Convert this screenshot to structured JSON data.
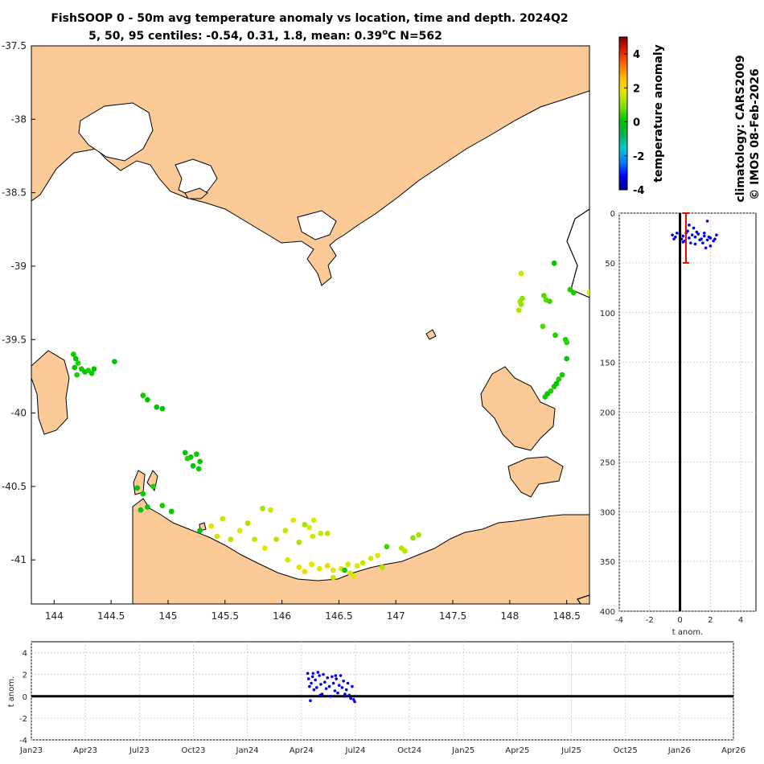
{
  "title": {
    "line1": "FishSOOP 0 - 50m avg temperature anomaly vs location, time and depth. 2024Q2",
    "line2_prefix": "5, 50, 95 centiles: -0.54, 0.31, 1.8, mean: 0.39",
    "line2_unit_deg": "o",
    "line2_suffix": "C N=562"
  },
  "side_text": {
    "climatology": "climatology: CARS2009",
    "credit": "© IMOS 08-Feb-2026"
  },
  "colors": {
    "land": "#fcca96",
    "coast": "#000000",
    "dots_depth": "#0000e6",
    "errorbar": "#e60000",
    "grid": "#c8c8c8"
  },
  "chart_data": [
    {
      "type": "scatter",
      "name": "map",
      "xlabel": "",
      "ylabel": "",
      "xlim": [
        143.8,
        148.7
      ],
      "ylim": [
        -41.3,
        -37.5
      ],
      "x_ticks": [
        "144",
        "144.5",
        "145",
        "145.5",
        "146",
        "146.5",
        "147",
        "147.5",
        "148",
        "148.5"
      ],
      "x_tick_values": [
        144,
        144.5,
        145,
        145.5,
        146,
        146.5,
        147,
        147.5,
        148,
        148.5
      ],
      "y_ticks": [
        "-37.5",
        "-38",
        "-38.5",
        "-39",
        "-39.5",
        "-40",
        "-40.5",
        "-41"
      ],
      "y_tick_values": [
        -37.5,
        -38,
        -38.5,
        -39,
        -39.5,
        -40,
        -40.5,
        -41
      ],
      "points": [
        [
          144.17,
          -39.6,
          0.2
        ],
        [
          144.19,
          -39.63,
          0.1
        ],
        [
          144.21,
          -39.66,
          0.3
        ],
        [
          144.18,
          -39.69,
          0.0
        ],
        [
          144.24,
          -39.7,
          0.2
        ],
        [
          144.27,
          -39.72,
          0.1
        ],
        [
          144.3,
          -39.71,
          0.3
        ],
        [
          144.33,
          -39.73,
          0.2
        ],
        [
          144.35,
          -39.7,
          0.1
        ],
        [
          144.2,
          -39.74,
          0.3
        ],
        [
          144.53,
          -39.65,
          0.1
        ],
        [
          144.78,
          -39.88,
          0.2
        ],
        [
          144.82,
          -39.91,
          0.1
        ],
        [
          144.9,
          -39.96,
          0.0
        ],
        [
          144.95,
          -39.97,
          0.1
        ],
        [
          145.15,
          -40.27,
          0.0
        ],
        [
          145.2,
          -40.3,
          0.1
        ],
        [
          145.25,
          -40.28,
          0.2
        ],
        [
          145.28,
          -40.33,
          0.1
        ],
        [
          145.22,
          -40.36,
          0.0
        ],
        [
          145.27,
          -40.38,
          0.2
        ],
        [
          145.17,
          -40.31,
          0.3
        ],
        [
          144.73,
          -40.51,
          0.0
        ],
        [
          144.78,
          -40.55,
          0.1
        ],
        [
          144.87,
          -40.5,
          0.3
        ],
        [
          144.82,
          -40.64,
          0.1
        ],
        [
          144.76,
          -40.66,
          0.0
        ],
        [
          144.95,
          -40.63,
          0.2
        ],
        [
          145.03,
          -40.67,
          0.1
        ],
        [
          145.28,
          -40.8,
          0.0
        ],
        [
          145.38,
          -40.77,
          1.8
        ],
        [
          145.43,
          -40.84,
          1.6
        ],
        [
          145.48,
          -40.72,
          1.5
        ],
        [
          145.55,
          -40.86,
          1.4
        ],
        [
          145.63,
          -40.8,
          1.7
        ],
        [
          145.7,
          -40.75,
          1.3
        ],
        [
          145.76,
          -40.86,
          1.5
        ],
        [
          145.83,
          -40.65,
          1.2
        ],
        [
          145.9,
          -40.66,
          1.6
        ],
        [
          145.85,
          -40.92,
          1.8
        ],
        [
          145.95,
          -40.86,
          1.4
        ],
        [
          146.03,
          -40.8,
          1.5
        ],
        [
          146.1,
          -40.73,
          1.7
        ],
        [
          146.15,
          -40.88,
          1.3
        ],
        [
          146.2,
          -40.76,
          1.2
        ],
        [
          146.24,
          -40.78,
          1.8
        ],
        [
          146.27,
          -40.84,
          1.6
        ],
        [
          146.34,
          -40.82,
          1.5
        ],
        [
          146.4,
          -40.82,
          1.4
        ],
        [
          146.28,
          -40.73,
          1.7
        ],
        [
          146.15,
          -41.05,
          1.9
        ],
        [
          146.2,
          -41.08,
          2.0
        ],
        [
          146.26,
          -41.03,
          1.8
        ],
        [
          146.33,
          -41.06,
          1.7
        ],
        [
          146.4,
          -41.04,
          2.0
        ],
        [
          146.45,
          -41.07,
          1.9
        ],
        [
          146.52,
          -41.06,
          1.8
        ],
        [
          146.58,
          -41.03,
          1.7
        ],
        [
          146.6,
          -41.09,
          1.6
        ],
        [
          146.66,
          -41.04,
          1.9
        ],
        [
          146.71,
          -41.02,
          1.5
        ],
        [
          146.78,
          -40.99,
          1.6
        ],
        [
          146.84,
          -40.97,
          1.8
        ],
        [
          146.88,
          -41.05,
          1.3
        ],
        [
          146.05,
          -41.0,
          1.6
        ],
        [
          146.55,
          -41.07,
          0.2
        ],
        [
          147.05,
          -40.92,
          1.3
        ],
        [
          147.08,
          -40.94,
          1.4
        ],
        [
          147.15,
          -40.85,
          1.0
        ],
        [
          147.2,
          -40.83,
          1.2
        ],
        [
          146.92,
          -40.91,
          0.5
        ],
        [
          146.45,
          -41.12,
          1.5
        ],
        [
          146.63,
          -41.11,
          1.8
        ],
        [
          148.1,
          -39.05,
          1.6
        ],
        [
          148.09,
          -39.24,
          1.2
        ],
        [
          148.1,
          -39.26,
          1.1
        ],
        [
          148.08,
          -39.3,
          1.3
        ],
        [
          148.11,
          -39.22,
          1.0
        ],
        [
          148.3,
          -39.2,
          0.6
        ],
        [
          148.32,
          -39.23,
          0.7
        ],
        [
          148.35,
          -39.24,
          0.5
        ],
        [
          148.39,
          -38.98,
          0.1
        ],
        [
          148.29,
          -39.41,
          0.6
        ],
        [
          148.4,
          -39.47,
          0.3
        ],
        [
          148.49,
          -39.5,
          0.3
        ],
        [
          148.5,
          -39.52,
          0.4
        ],
        [
          148.5,
          -39.63,
          0.1
        ],
        [
          148.46,
          -39.74,
          0.2
        ],
        [
          148.43,
          -39.77,
          0.3
        ],
        [
          148.41,
          -39.8,
          0.1
        ],
        [
          148.39,
          -39.82,
          0.2
        ],
        [
          148.36,
          -39.85,
          0.3
        ],
        [
          148.33,
          -39.87,
          0.1
        ],
        [
          148.31,
          -39.89,
          0.2
        ],
        [
          148.53,
          -39.16,
          0.3
        ],
        [
          148.56,
          -39.18,
          0.2
        ],
        [
          148.7,
          -39.18,
          1.6
        ]
      ]
    },
    {
      "type": "scatter",
      "name": "depth_profile",
      "xlabel": "t anom.",
      "ylabel": "",
      "xlim": [
        -4,
        5
      ],
      "ylim": [
        0,
        400
      ],
      "x_ticks": [
        "-4",
        "-2",
        "0",
        "2",
        "4"
      ],
      "x_tick_values": [
        -4,
        -2,
        0,
        2,
        4
      ],
      "y_ticks": [
        "0",
        "50",
        "100",
        "150",
        "200",
        "250",
        "300",
        "350",
        "400"
      ],
      "y_tick_values": [
        0,
        50,
        100,
        150,
        200,
        250,
        300,
        350,
        400
      ],
      "mean": 0.39,
      "errorbar": {
        "x": 0.39,
        "depth_min": 0,
        "depth_max": 50
      },
      "points": [
        [
          -0.5,
          22
        ],
        [
          -0.3,
          24
        ],
        [
          0.0,
          21
        ],
        [
          0.2,
          23
        ],
        [
          0.4,
          20
        ],
        [
          0.6,
          25
        ],
        [
          0.8,
          22
        ],
        [
          1.0,
          24
        ],
        [
          1.2,
          21
        ],
        [
          1.4,
          26
        ],
        [
          1.6,
          23
        ],
        [
          1.8,
          27
        ],
        [
          2.0,
          25
        ],
        [
          2.2,
          28
        ],
        [
          2.4,
          22
        ],
        [
          0.5,
          18
        ],
        [
          0.9,
          15
        ],
        [
          1.5,
          30
        ],
        [
          1.7,
          35
        ],
        [
          2.0,
          33
        ],
        [
          0.1,
          26
        ],
        [
          -0.2,
          20
        ],
        [
          0.3,
          28
        ],
        [
          1.1,
          19
        ],
        [
          1.9,
          24
        ],
        [
          2.3,
          26
        ],
        [
          0.7,
          30
        ],
        [
          1.3,
          27
        ],
        [
          -0.4,
          26
        ],
        [
          0.6,
          12
        ],
        [
          1.8,
          8
        ],
        [
          0.2,
          29
        ],
        [
          1.0,
          31
        ],
        [
          1.6,
          20
        ]
      ]
    },
    {
      "type": "scatter",
      "name": "time_series",
      "xlabel": "",
      "ylabel": "t anom.",
      "xlim": [
        0,
        39
      ],
      "ylim": [
        -4,
        5
      ],
      "x_ticks": [
        "Jan23",
        "Apr23",
        "Jul23",
        "Oct23",
        "Jan24",
        "Apr24",
        "Jul24",
        "Oct24",
        "Jan25",
        "Apr25",
        "Jul25",
        "Oct25",
        "Jan26",
        "Apr26"
      ],
      "x_tick_values": [
        0,
        3,
        6,
        9,
        12,
        15,
        18,
        21,
        24,
        27,
        30,
        33,
        36,
        39
      ],
      "y_ticks": [
        "-4",
        "-2",
        "0",
        "2",
        "4"
      ],
      "y_tick_values": [
        -4,
        -2,
        0,
        2,
        4
      ],
      "points": [
        [
          15.35,
          2.1
        ],
        [
          15.4,
          1.6
        ],
        [
          15.45,
          0.9
        ],
        [
          15.5,
          -0.4
        ],
        [
          15.55,
          1.2
        ],
        [
          15.62,
          1.8
        ],
        [
          15.7,
          0.6
        ],
        [
          15.78,
          1.5
        ],
        [
          15.85,
          0.8
        ],
        [
          15.92,
          2.2
        ],
        [
          16.0,
          1.9
        ],
        [
          16.08,
          1.1
        ],
        [
          16.15,
          0.2
        ],
        [
          16.22,
          2.0
        ],
        [
          16.3,
          1.3
        ],
        [
          16.38,
          0.7
        ],
        [
          16.45,
          1.7
        ],
        [
          16.55,
          0.9
        ],
        [
          16.62,
          0.0
        ],
        [
          16.7,
          1.8
        ],
        [
          16.78,
          1.2
        ],
        [
          16.86,
          0.5
        ],
        [
          16.94,
          1.6
        ],
        [
          17.02,
          0.3
        ],
        [
          17.1,
          1.0
        ],
        [
          17.18,
          1.9
        ],
        [
          17.26,
          0.8
        ],
        [
          17.34,
          1.4
        ],
        [
          17.42,
          0.2
        ],
        [
          17.5,
          0.6
        ],
        [
          17.58,
          1.2
        ],
        [
          17.66,
          0.1
        ],
        [
          17.74,
          -0.2
        ],
        [
          17.82,
          0.9
        ],
        [
          17.9,
          -0.3
        ],
        [
          17.96,
          -0.5
        ],
        [
          16.05,
          0.1
        ],
        [
          15.65,
          2.1
        ],
        [
          16.9,
          1.9
        ],
        [
          17.4,
          0.0
        ]
      ]
    },
    {
      "type": "heatmap",
      "name": "colorbar",
      "label": "temperature anomaly",
      "range": [
        -4,
        5
      ],
      "ticks": [
        "-4",
        "-2",
        "0",
        "2",
        "4"
      ],
      "tick_values": [
        -4,
        -2,
        0,
        2,
        4
      ],
      "stops": [
        "#00008f",
        "#0000ff",
        "#007fff",
        "#00cccc",
        "#00b050",
        "#00c800",
        "#80e000",
        "#e0e800",
        "#ffc000",
        "#ff7000",
        "#e02000",
        "#800000"
      ]
    }
  ]
}
